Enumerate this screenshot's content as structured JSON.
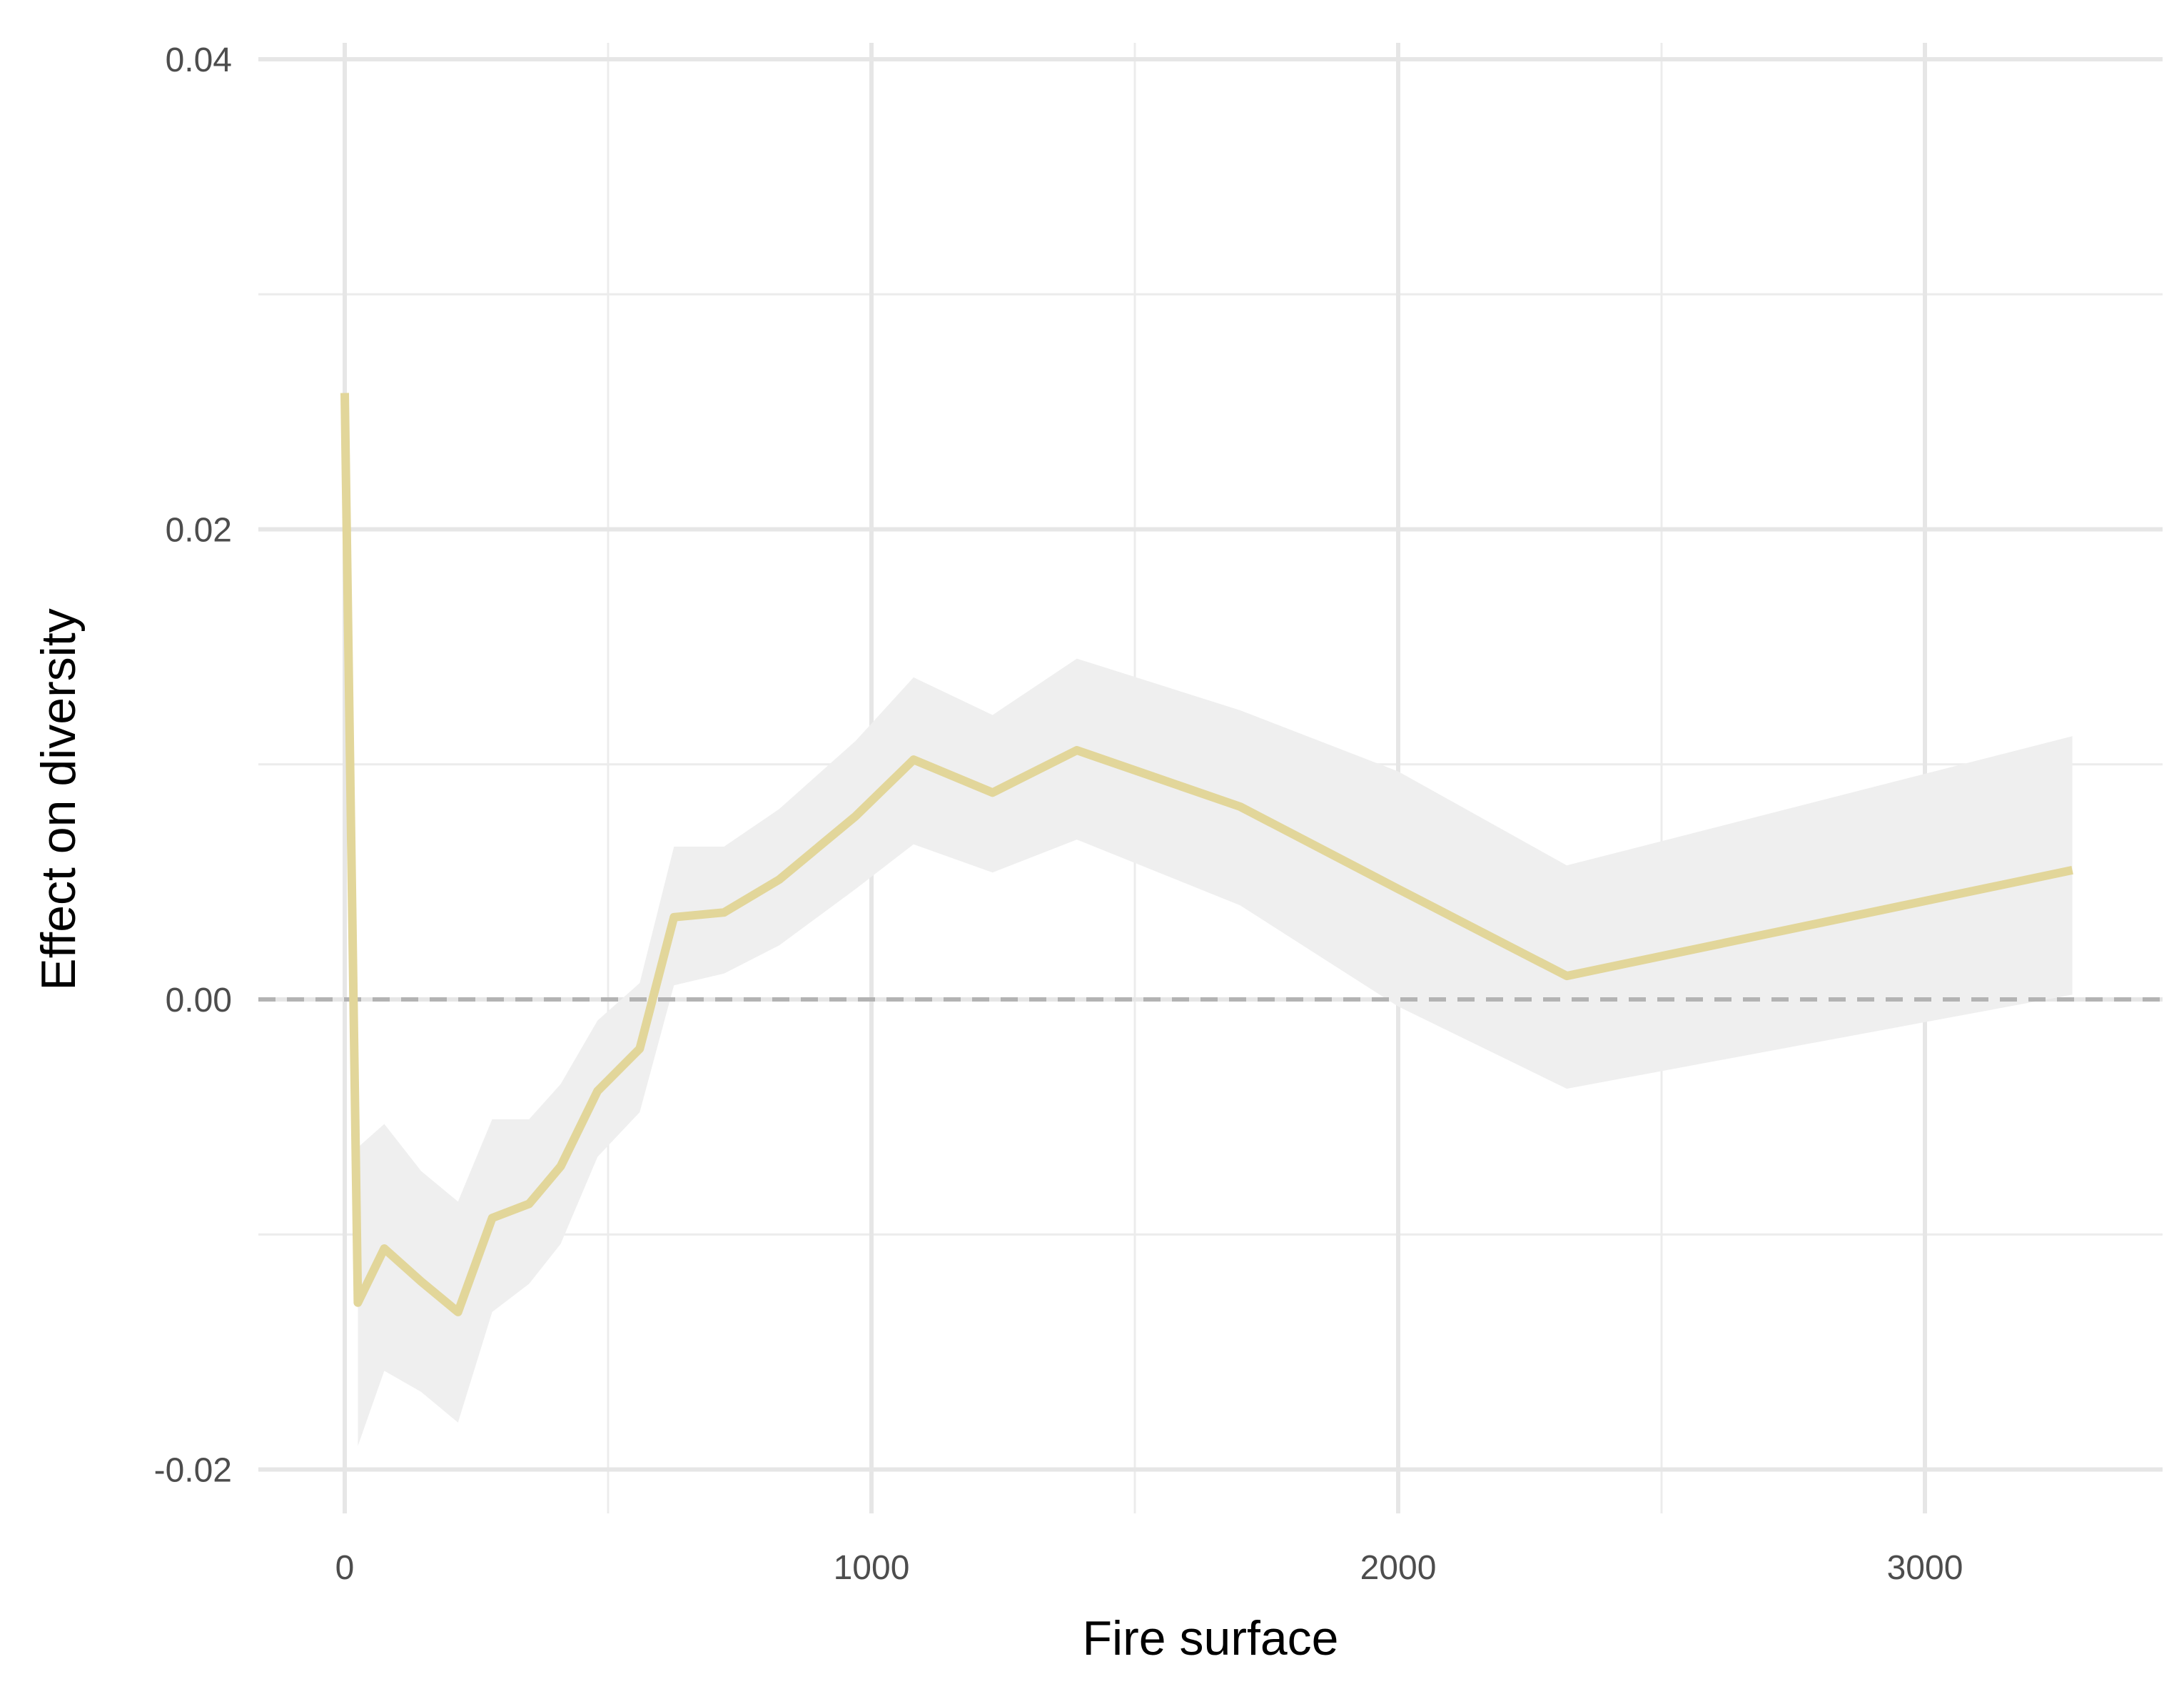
{
  "chart_data": {
    "type": "line",
    "title": "",
    "xlabel": "Fire surface",
    "ylabel": "Effect on diversity",
    "xlim": [
      -160,
      3450
    ],
    "ylim": [
      -0.0215,
      0.0405
    ],
    "x_ticks": [
      0,
      1000,
      2000,
      3000
    ],
    "x_tick_labels": [
      "0",
      "1000",
      "2000",
      "3000"
    ],
    "y_ticks": [
      -0.02,
      0.0,
      0.02,
      0.04
    ],
    "y_tick_labels": [
      "-0.02",
      "0.00",
      "0.02",
      "0.04"
    ],
    "x_minor": [
      500,
      1500,
      2500
    ],
    "y_minor": [
      -0.01,
      0.01,
      0.03
    ],
    "grid": true,
    "reference_line": {
      "y": 0.0,
      "style": "dashed",
      "color": "#b3b3b3"
    },
    "line_color": "#e2d69a",
    "band_color": "#efefef",
    "series": [
      {
        "x": [
          0,
          25,
          75,
          145,
          215,
          280,
          350,
          410,
          480,
          560,
          625,
          720,
          825,
          970,
          1080,
          1230,
          1390,
          1700,
          2000,
          2320,
          3280
        ],
        "y": [
          0.0258,
          -0.0129,
          -0.0106,
          -0.012,
          -0.0133,
          -0.0093,
          -0.0087,
          -0.0071,
          -0.0039,
          -0.0021,
          0.0035,
          0.0037,
          0.0051,
          0.0078,
          0.0102,
          0.0088,
          0.0106,
          0.0082,
          0.0047,
          0.001,
          0.0055
        ],
        "lower": [
          null,
          -0.019,
          -0.0158,
          -0.0167,
          -0.018,
          -0.0133,
          -0.0121,
          -0.0104,
          -0.0067,
          -0.0048,
          0.0006,
          0.0011,
          0.0023,
          0.0047,
          0.0066,
          0.0054,
          0.0068,
          0.004,
          -0.0003,
          -0.0038,
          0.0002
        ],
        "upper": [
          null,
          -0.0063,
          -0.0053,
          -0.0073,
          -0.0086,
          -0.0051,
          -0.0051,
          -0.0036,
          -0.0009,
          0.0007,
          0.0065,
          0.0065,
          0.0081,
          0.011,
          0.0137,
          0.0121,
          0.0145,
          0.0123,
          0.0097,
          0.0057,
          0.0112
        ]
      }
    ]
  }
}
